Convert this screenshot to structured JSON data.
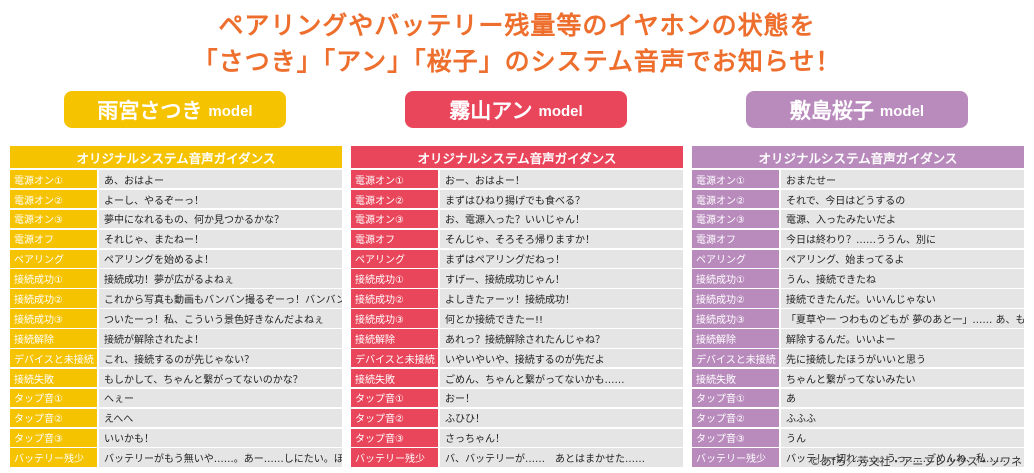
{
  "headline": {
    "line1": "ペアリングやバッテリー残量等のイヤホンの状態を",
    "line2": "「さつき」「アン」「桜子」のシステム音声でお知らせ！"
  },
  "colors": {
    "headline": "#ee6f2d",
    "satsuki": "#f5c300",
    "anne": "#e9465b",
    "sakurako": "#b98bbd",
    "row_text_bg": "#e5e5e5"
  },
  "panels": [
    {
      "model_name": "雨宮さつき",
      "model_suffix": "model",
      "header": "オリジナルシステム音声ガイダンス",
      "rows": [
        {
          "label": "電源オン①",
          "text": "あ、おはよー"
        },
        {
          "label": "電源オン②",
          "text": "よーし、やるぞーっ！"
        },
        {
          "label": "電源オン③",
          "text": "夢中になれるもの、何か見つかるかな？"
        },
        {
          "label": "電源オフ",
          "text": "それじゃ、またねー！"
        },
        {
          "label": "ペアリング",
          "text": "ペアリングを始めるよ！"
        },
        {
          "label": "接続成功①",
          "text": "接続成功！夢が広がるよねぇ"
        },
        {
          "label": "接続成功②",
          "text": "これから写真も動画もバンバン撮るぞーっ！バンバンババーン！"
        },
        {
          "label": "接続成功③",
          "text": "ついたーっ！私、こういう景色好きなんだよねぇ"
        },
        {
          "label": "接続解除",
          "text": "接続が解除されたよ！"
        },
        {
          "label": "デバイスと未接続",
          "text": "これ、接続するのが先じゃない？"
        },
        {
          "label": "接続失敗",
          "text": "もしかして、ちゃんと繋がってないのかな？"
        },
        {
          "label": "タップ音①",
          "text": "へぇー"
        },
        {
          "label": "タップ音②",
          "text": "えへへ"
        },
        {
          "label": "タップ音③",
          "text": "いいかも！"
        },
        {
          "label": "バッテリー残少",
          "text": "バッテリーがもう無いや……。あー……しにたい。ほげ～……"
        }
      ]
    },
    {
      "model_name": "霧山アン",
      "model_suffix": "model",
      "header": "オリジナルシステム音声ガイダンス",
      "rows": [
        {
          "label": "電源オン①",
          "text": "おー、おはよー！"
        },
        {
          "label": "電源オン②",
          "text": "まずはひねり揚げでも食べる？"
        },
        {
          "label": "電源オン③",
          "text": "お、電源入った？いいじゃん！"
        },
        {
          "label": "電源オフ",
          "text": "そんじゃ、そろそろ帰りますか！"
        },
        {
          "label": "ペアリング",
          "text": "まずはペアリングだねっ！"
        },
        {
          "label": "接続成功①",
          "text": "すげー、接続成功じゃん！"
        },
        {
          "label": "接続成功②",
          "text": "よしきたァーッ！接続成功！"
        },
        {
          "label": "接続成功③",
          "text": "何とか接続できたー!!"
        },
        {
          "label": "接続解除",
          "text": "あれっ？接続解除されたんじゃね？"
        },
        {
          "label": "デバイスと未接続",
          "text": "いやいやいや、接続するのが先だよ"
        },
        {
          "label": "接続失敗",
          "text": "ごめん、ちゃんと繋がってないかも……"
        },
        {
          "label": "タップ音①",
          "text": "おー！"
        },
        {
          "label": "タップ音②",
          "text": "ふひひ！"
        },
        {
          "label": "タップ音③",
          "text": "さっちゃん！"
        },
        {
          "label": "バッテリー残少",
          "text": "バ、バッテリーが……　あとはまかせた……"
        }
      ]
    },
    {
      "model_name": "敷島桜子",
      "model_suffix": "model",
      "header": "オリジナルシステム音声ガイダンス",
      "rows": [
        {
          "label": "電源オン①",
          "text": "おまたせー"
        },
        {
          "label": "電源オン②",
          "text": "それで、今日はどうするの"
        },
        {
          "label": "電源オン③",
          "text": "電源、入ったみたいだよ"
        },
        {
          "label": "電源オフ",
          "text": "今日は終わり？……ううん、別に"
        },
        {
          "label": "ペアリング",
          "text": "ペアリング、始まってるよ"
        },
        {
          "label": "接続成功①",
          "text": "うん、接続できたね"
        },
        {
          "label": "接続成功②",
          "text": "接続できたんだ。いいんじゃない"
        },
        {
          "label": "接続成功③",
          "text": "「夏草や一 つわものどもが 夢のあと一」…… あ、もう大丈夫ですー"
        },
        {
          "label": "接続解除",
          "text": "解除するんだ。いいよー"
        },
        {
          "label": "デバイスと未接続",
          "text": "先に接続したほうがいいと思う"
        },
        {
          "label": "接続失敗",
          "text": "ちゃんと繋がってないみたい"
        },
        {
          "label": "タップ音①",
          "text": "あ"
        },
        {
          "label": "タップ音②",
          "text": "ふふふ"
        },
        {
          "label": "タップ音③",
          "text": "うん"
        },
        {
          "label": "バッテリー残少",
          "text": "バッテリー切れ……。うっ……ごめんね、私……"
        }
      ]
    }
  ],
  "copyright": "©あfろ／芳文社・アニプレックス・ソワネ"
}
